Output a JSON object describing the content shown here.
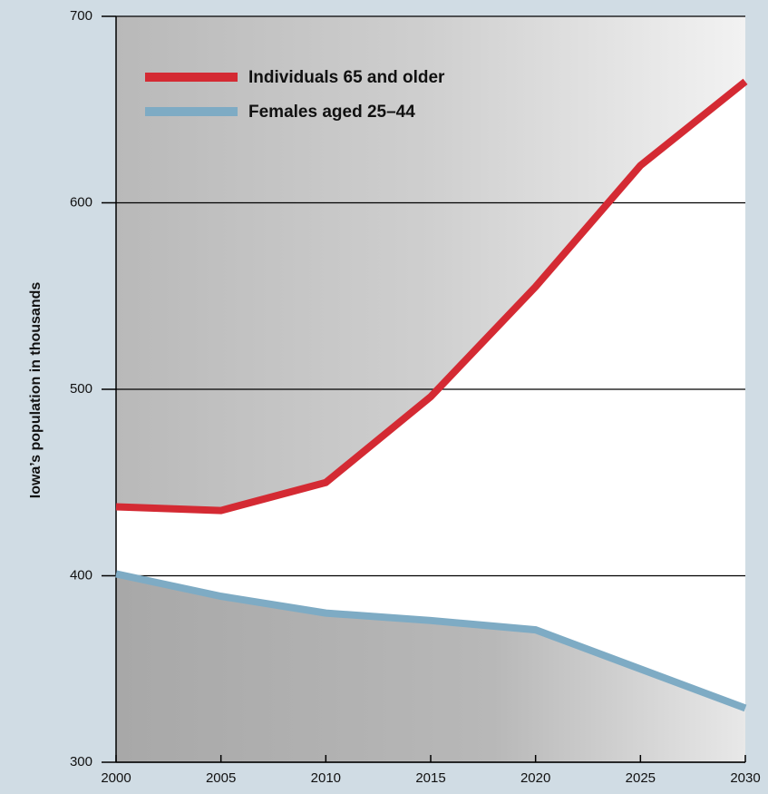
{
  "chart_data": {
    "type": "line",
    "y_axis_label": "Iowa’s population in thousands",
    "x": [
      2000,
      2005,
      2010,
      2015,
      2020,
      2025,
      2030
    ],
    "series": [
      {
        "name": "Individuals 65 and older",
        "color": "#d42a33",
        "values": [
          437,
          435,
          450,
          496,
          555,
          620,
          665
        ]
      },
      {
        "name": "Females aged 25–44",
        "color": "#7eabc4",
        "values": [
          401,
          389,
          380,
          376,
          371,
          350,
          329
        ]
      }
    ],
    "xlim": [
      2000,
      2030
    ],
    "xticks": [
      2000,
      2005,
      2010,
      2015,
      2020,
      2025,
      2030
    ],
    "ylim": [
      300,
      700
    ],
    "yticks": [
      300,
      400,
      500,
      600,
      700
    ],
    "grid": true,
    "legend": "upper left"
  }
}
